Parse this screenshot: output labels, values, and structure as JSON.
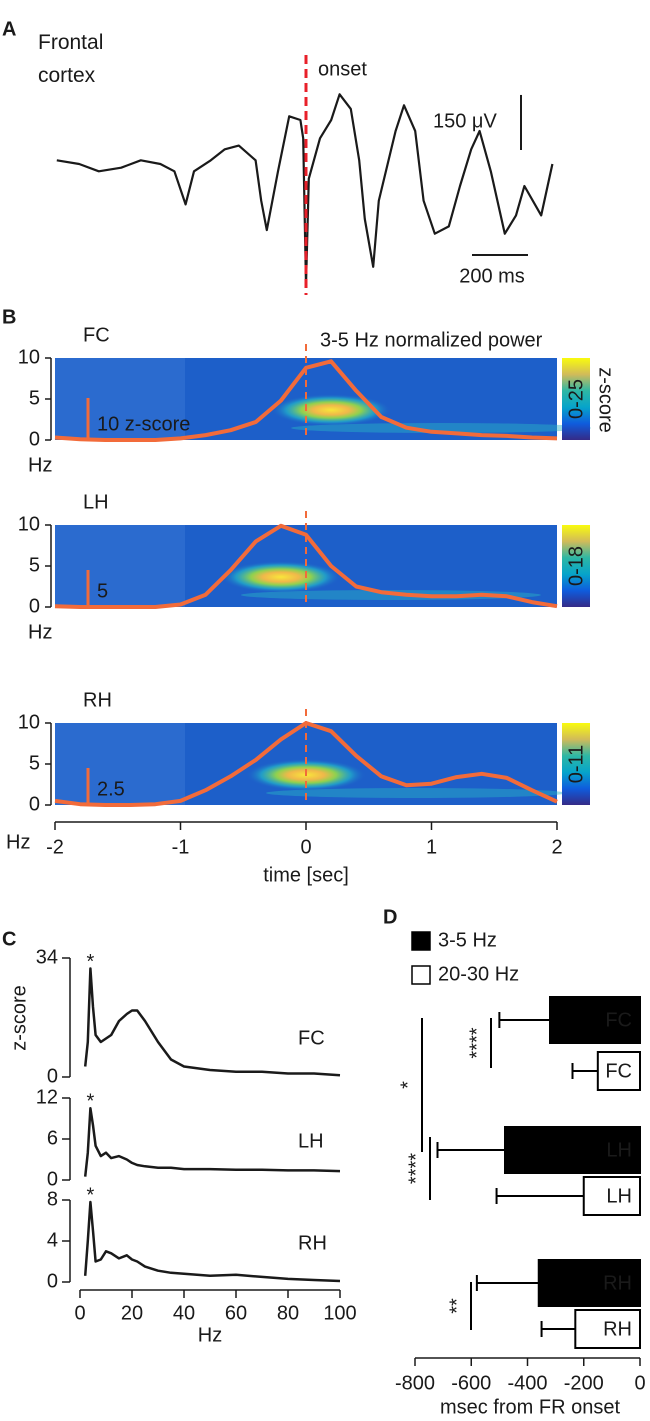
{
  "chart_data": [
    {
      "type": "line",
      "panel": "A",
      "title": "Frontal cortex",
      "color": "#1a1a1a",
      "x": [
        -890,
        -810,
        -740,
        -660,
        -590,
        -520,
        -470,
        -430,
        -400,
        -340,
        -290,
        -240,
        -180,
        -160,
        -140,
        -100,
        -60,
        -20,
        -10,
        0,
        10,
        50,
        90,
        120,
        160,
        190,
        210,
        240,
        260,
        320,
        350,
        390,
        420,
        460,
        510,
        550,
        590,
        620,
        660,
        710,
        750,
        780,
        840,
        880
      ],
      "values": [
        40,
        30,
        10,
        20,
        40,
        30,
        10,
        -80,
        10,
        40,
        70,
        80,
        40,
        -70,
        -150,
        10,
        160,
        150,
        100,
        -300,
        -10,
        100,
        150,
        220,
        180,
        40,
        -120,
        -250,
        -70,
        120,
        190,
        120,
        -70,
        -160,
        -140,
        -30,
        70,
        120,
        10,
        -160,
        -110,
        -30,
        -110,
        30
      ],
      "onset": {
        "label": "onset",
        "x": 0,
        "color": "#e8202a"
      },
      "scale_bars": [
        {
          "value": 150,
          "label": "150 μV"
        },
        {
          "value": 200,
          "label": "200 ms"
        }
      ]
    },
    {
      "type": "spectrogram",
      "panel": "B",
      "legend": "3-5 Hz normalized power",
      "color": "#f26b3a",
      "colorbar_label": "z-score",
      "xlabel": "time [sec]",
      "ylabel": "Hz",
      "x": [
        -2,
        -1.8,
        -1.6,
        -1.4,
        -1.2,
        -1,
        -0.8,
        -0.6,
        -0.4,
        -0.2,
        0,
        0.2,
        0.4,
        0.6,
        0.8,
        1,
        1.2,
        1.4,
        1.6,
        1.8,
        2
      ],
      "xlim": [
        -2,
        2
      ],
      "xticks": [
        -2,
        -1,
        0,
        1,
        2
      ],
      "panels": [
        {
          "name": "FC",
          "ylim": [
            0,
            10
          ],
          "yticks": [
            0,
            5,
            10
          ],
          "colorbar": "0-25",
          "scale_bar": {
            "value": 10,
            "label": "10 z-score"
          },
          "values": [
            0.3,
            0.1,
            0,
            0,
            0,
            0.2,
            0.6,
            1.2,
            2.2,
            4.8,
            8.8,
            9.6,
            6.0,
            2.8,
            1.5,
            1.0,
            0.8,
            0.6,
            0.5,
            0.3,
            0.2
          ]
        },
        {
          "name": "LH",
          "ylim": [
            0,
            10
          ],
          "yticks": [
            0,
            5,
            10
          ],
          "colorbar": "0-18",
          "scale_bar": {
            "value": 5,
            "label": "5"
          },
          "values": [
            0.1,
            0,
            0,
            0,
            0,
            0.3,
            1.5,
            4.5,
            8.0,
            9.9,
            8.8,
            5.0,
            2.5,
            1.8,
            1.5,
            1.3,
            1.3,
            1.5,
            1.3,
            0.6,
            0.1
          ]
        },
        {
          "name": "RH",
          "ylim": [
            0,
            10
          ],
          "yticks": [
            0,
            5,
            10
          ],
          "colorbar": "0-11",
          "scale_bar": {
            "value": 2.5,
            "label": "2.5"
          },
          "values": [
            0.5,
            0.1,
            0,
            0,
            0.1,
            0.5,
            1.8,
            3.5,
            5.5,
            8.0,
            10,
            9.0,
            6.0,
            3.5,
            2.4,
            2.6,
            3.4,
            3.8,
            3.3,
            1.8,
            0.4
          ]
        }
      ]
    },
    {
      "type": "line",
      "panel": "C",
      "ylabel": "z-score",
      "xlabel": "Hz",
      "color": "#1a1a1a",
      "peak_label": "*",
      "peak_color": "#e8202a",
      "x": [
        2,
        3,
        4,
        5,
        6,
        8,
        10,
        12,
        15,
        18,
        20,
        22,
        25,
        30,
        35,
        40,
        50,
        60,
        70,
        80,
        90,
        100
      ],
      "xlim": [
        0,
        100
      ],
      "xticks": [
        0,
        20,
        40,
        60,
        80,
        100
      ],
      "panels": [
        {
          "name": "FC",
          "ylim": [
            0,
            34
          ],
          "yticks": [
            0,
            34
          ],
          "values": [
            3,
            10,
            31,
            20,
            12,
            10,
            11,
            12,
            16,
            18,
            19,
            19,
            16,
            10,
            5,
            3,
            2,
            1.5,
            1.5,
            1,
            1,
            0.5
          ]
        },
        {
          "name": "LH",
          "ylim": [
            0,
            12
          ],
          "yticks": [
            0,
            6,
            12
          ],
          "values": [
            0.5,
            4,
            10.5,
            8,
            5,
            3.5,
            4,
            3.2,
            3.5,
            3,
            2.5,
            2.2,
            2,
            1.8,
            1.8,
            1.6,
            1.6,
            1.5,
            1.5,
            1.4,
            1.4,
            1.3
          ]
        },
        {
          "name": "RH",
          "ylim": [
            0,
            8
          ],
          "yticks": [
            0,
            4,
            8
          ],
          "values": [
            0.6,
            4,
            7.8,
            5,
            2,
            2.2,
            3,
            2.8,
            2.3,
            2.6,
            2.2,
            2,
            1.5,
            1.1,
            0.9,
            0.8,
            0.6,
            0.7,
            0.5,
            0.3,
            0.2,
            0.1
          ]
        }
      ]
    },
    {
      "type": "bar",
      "panel": "D",
      "orientation": "horizontal",
      "xlabel": "msec from FR onset",
      "categories": [
        "FC",
        "LH",
        "RH"
      ],
      "series": [
        {
          "name": "3-5 Hz",
          "color": "#000000",
          "values": [
            -320,
            -480,
            -360
          ],
          "errors": [
            180,
            240,
            220
          ]
        },
        {
          "name": "20-30 Hz",
          "color": "#ffffff",
          "values": [
            -150,
            -200,
            -230
          ],
          "errors": [
            90,
            310,
            120
          ]
        }
      ],
      "xlim": [
        -800,
        0
      ],
      "xticks": [
        -800,
        -600,
        -400,
        -200,
        0
      ],
      "significance": [
        "****",
        "*",
        "****",
        "**"
      ]
    }
  ]
}
